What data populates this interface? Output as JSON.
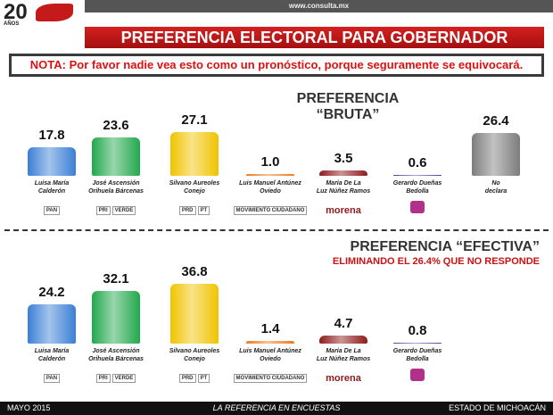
{
  "header": {
    "logo": "20",
    "logo_sub": "AÑOS",
    "site": "www.consulta.mx",
    "title": "PREFERENCIA ELECTORAL PARA GOBERNADOR",
    "note": "NOTA: Por favor nadie vea esto como un pronóstico, porque seguramente se equivocará."
  },
  "chart_data": [
    {
      "type": "bar",
      "title": "PREFERENCIA “BRUTA”",
      "categories": [
        "Luisa María\nCalderón",
        "José Ascensión\nOrihuela Bárcenas",
        "Silvano Aureoles\nConejo",
        "Luis Manuel Antúnez\nOviedo",
        "María De La\nLuz Núñez Ramos",
        "Gerardo Dueñas\nBedolla",
        "No\ndeclara"
      ],
      "values": [
        17.8,
        23.6,
        27.1,
        1,
        3.5,
        0.6,
        26.4
      ],
      "value_labels": [
        "17.8",
        "23.6",
        "27.1",
        "1.0",
        "3.5",
        "0.6",
        "26.4"
      ],
      "colors": [
        "#3b7fd6",
        "#22a84c",
        "#f0c400",
        "#ee7a1c",
        "#8e1b1b",
        "#3d4a9a",
        "#7d7d7d"
      ],
      "logos": [
        [
          "PAN"
        ],
        [
          "PRI",
          "VERDE"
        ],
        [
          "PRD",
          "PT"
        ],
        [
          "MOVIMIENTO CIUDADANO"
        ],
        [
          "morena"
        ],
        [],
        []
      ],
      "ylim": [
        0,
        40
      ]
    },
    {
      "type": "bar",
      "title": "PREFERENCIA “EFECTIVA”",
      "subtitle": "ELIMINANDO EL 26.4% QUE NO RESPONDE",
      "categories": [
        "Luisa María\nCalderón",
        "José Ascensión\nOrihuela Bárcenas",
        "Silvano Aureoles\nConejo",
        "Luis Manuel Antúnez\nOviedo",
        "María De La\nLuz Núñez Ramos",
        "Gerardo Dueñas\nBedolla"
      ],
      "values": [
        24.2,
        32.1,
        36.8,
        1.4,
        4.7,
        0.8
      ],
      "value_labels": [
        "24.2",
        "32.1",
        "36.8",
        "1.4",
        "4.7",
        "0.8"
      ],
      "colors": [
        "#3b7fd6",
        "#22a84c",
        "#f0c400",
        "#ee7a1c",
        "#8e1b1b",
        "#3d4a9a"
      ],
      "logos": [
        [
          "PAN"
        ],
        [
          "PRI",
          "VERDE"
        ],
        [
          "PRD",
          "PT"
        ],
        [
          "MOVIMIENTO CIUDADANO"
        ],
        [
          "morena"
        ],
        []
      ],
      "ylim": [
        0,
        40
      ]
    }
  ],
  "footer": {
    "left": "MAYO 2015",
    "center": "LA REFERENCIA EN ENCUESTAS",
    "right": "ESTADO DE MICHOACÁN"
  }
}
